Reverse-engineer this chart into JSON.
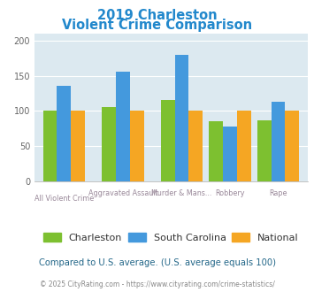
{
  "title_line1": "2019 Charleston",
  "title_line2": "Violent Crime Comparison",
  "title_color": "#2288cc",
  "charleston": [
    100,
    105,
    115,
    85,
    86
  ],
  "south_carolina": [
    135,
    156,
    180,
    77,
    113
  ],
  "national": [
    100,
    100,
    100,
    100,
    100
  ],
  "charleston_color": "#7dc030",
  "sc_color": "#4499dd",
  "national_color": "#f5a623",
  "ylim": [
    0,
    210
  ],
  "yticks": [
    0,
    50,
    100,
    150,
    200
  ],
  "plot_bg": "#dce9f0",
  "top_labels": [
    "",
    "Aggravated Assault",
    "Murder & Mans...",
    "Robbery",
    "Rape"
  ],
  "bot_labels": [
    "All Violent Crime",
    "",
    "",
    "",
    ""
  ],
  "footer_text": "Compared to U.S. average. (U.S. average equals 100)",
  "footer_color": "#226688",
  "credit_text": "© 2025 CityRating.com - https://www.cityrating.com/crime-statistics/",
  "credit_color_left": "#888888",
  "legend_labels": [
    "Charleston",
    "South Carolina",
    "National"
  ]
}
